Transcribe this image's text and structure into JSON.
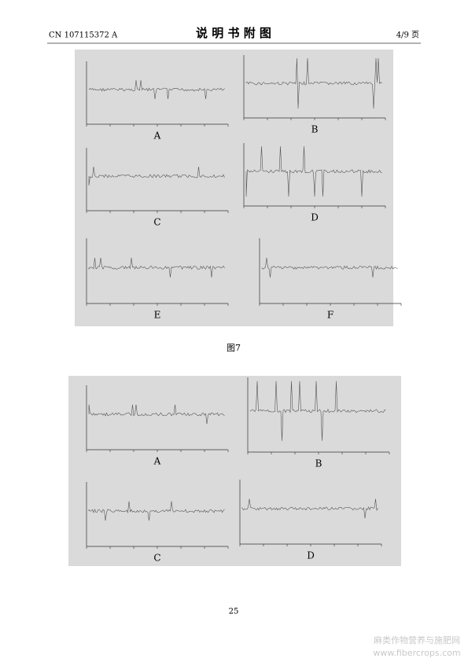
{
  "header": {
    "doc_number": "CN 107115372 A",
    "title": "说 明 书 附 图",
    "page_of": "4/9 页"
  },
  "figures": [
    {
      "panels": [
        "A",
        "B",
        "C",
        "D",
        "E",
        "F"
      ],
      "caption": "图7"
    },
    {
      "panels": [
        "A",
        "B",
        "C",
        "D"
      ]
    }
  ],
  "page_number": "25",
  "watermark": {
    "line1": "麻类作物营养与施肥网",
    "line2": "www.fibercrops.com"
  }
}
